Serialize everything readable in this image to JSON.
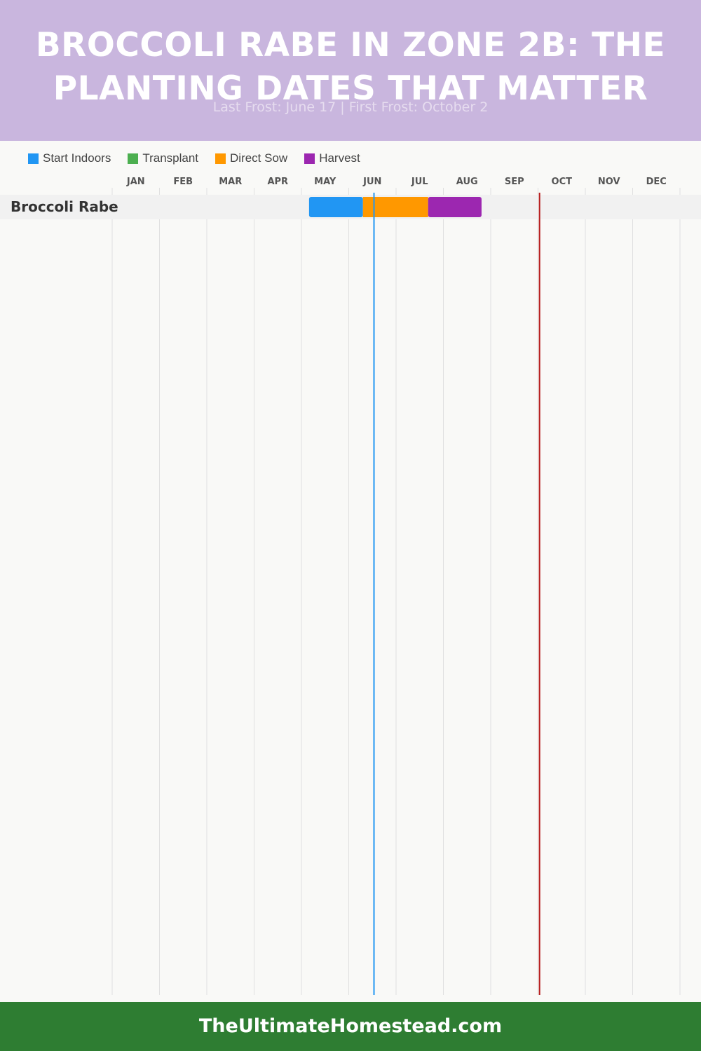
{
  "header": {
    "title": "BROCCOLI RABE IN ZONE 2B: THE\nPLANTING DATES THAT MATTER",
    "subtitle": "Last Frost: June 17 | First Frost: October 2"
  },
  "legend": [
    {
      "label": "Start Indoors",
      "color": "#2196f3"
    },
    {
      "label": "Transplant",
      "color": "#4caf50"
    },
    {
      "label": "Direct Sow",
      "color": "#ff9800"
    },
    {
      "label": "Harvest",
      "color": "#9c27b0"
    }
  ],
  "chart_data": {
    "type": "gantt",
    "months": [
      "JAN",
      "FEB",
      "MAR",
      "APR",
      "MAY",
      "JUN",
      "JUL",
      "AUG",
      "SEP",
      "OCT",
      "NOV",
      "DEC"
    ],
    "last_frost": "2024-06-17",
    "first_frost": "2024-10-02",
    "frost_line_colors": {
      "last_frost": "#2196f3",
      "first_frost": "#b71c1c"
    },
    "rows": [
      {
        "crop": "Broccoli Rabe",
        "phases": [
          {
            "phase": "Start Indoors",
            "start": "2024-05-06",
            "end": "2024-06-10",
            "color": "#2196f3"
          },
          {
            "phase": "Direct Sow",
            "start": "2024-06-10",
            "end": "2024-07-22",
            "color": "#ff9800"
          },
          {
            "phase": "Harvest",
            "start": "2024-07-22",
            "end": "2024-08-26",
            "color": "#9c27b0"
          }
        ]
      }
    ],
    "grid": true
  },
  "footer": {
    "text": "TheUltimateHomestead.com"
  }
}
